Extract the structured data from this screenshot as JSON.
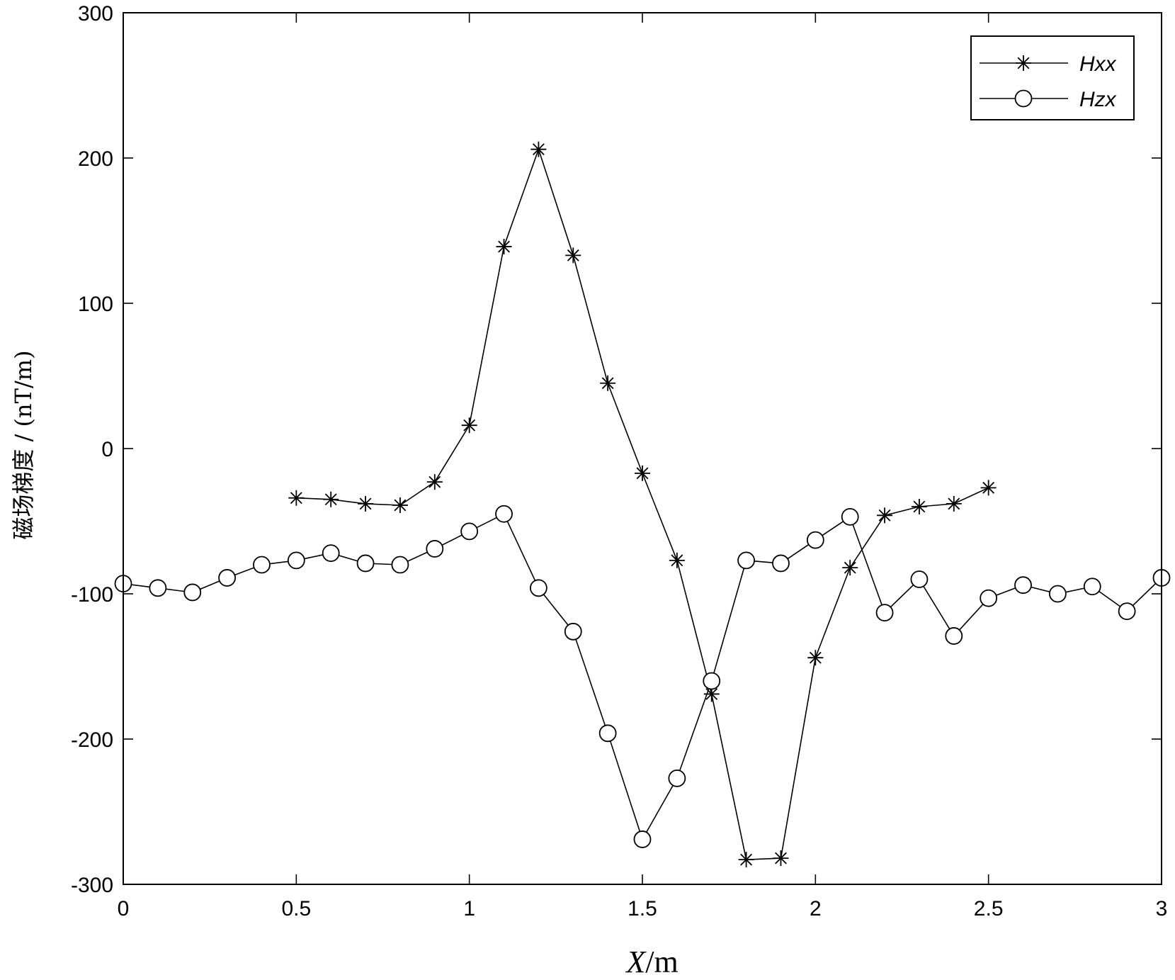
{
  "chart_data": {
    "type": "line",
    "xlabel_var": "X",
    "xlabel_unit": "/m",
    "ylabel": "磁场梯度 / (nT/m)",
    "xlim": [
      0,
      3
    ],
    "ylim": [
      -300,
      300
    ],
    "xticks": [
      0,
      0.5,
      1,
      1.5,
      2,
      2.5,
      3
    ],
    "xtick_labels": [
      "0",
      "0.5",
      "1",
      "1.5",
      "2",
      "2.5",
      "3"
    ],
    "yticks": [
      -300,
      -200,
      -100,
      0,
      100,
      200,
      300
    ],
    "ytick_labels": [
      "-300",
      "-200",
      "-100",
      "0",
      "100",
      "200",
      "300"
    ],
    "grid": false,
    "legend_position": "top-right",
    "series": [
      {
        "name": "Hxx",
        "marker": "asterisk",
        "x": [
          0.5,
          0.6,
          0.7,
          0.8,
          0.9,
          1.0,
          1.1,
          1.2,
          1.3,
          1.4,
          1.5,
          1.6,
          1.7,
          1.8,
          1.9,
          2.0,
          2.1,
          2.2,
          2.3,
          2.4,
          2.5
        ],
        "values": [
          -34,
          -35,
          -38,
          -39,
          -23,
          16,
          139,
          206,
          133,
          45,
          -17,
          -77,
          -169,
          -283,
          -282,
          -144,
          -82,
          -46,
          -40,
          -38,
          -27
        ]
      },
      {
        "name": "Hzx",
        "marker": "circle",
        "x": [
          0,
          0.1,
          0.2,
          0.3,
          0.4,
          0.5,
          0.6,
          0.7,
          0.8,
          0.9,
          1.0,
          1.1,
          1.2,
          1.3,
          1.4,
          1.5,
          1.6,
          1.7,
          1.8,
          1.9,
          2.0,
          2.1,
          2.2,
          2.3,
          2.4,
          2.5,
          2.6,
          2.7,
          2.8,
          2.9,
          3.0
        ],
        "values": [
          -93,
          -96,
          -99,
          -89,
          -80,
          -77,
          -72,
          -79,
          -80,
          -69,
          -57,
          -45,
          -96,
          -126,
          -196,
          -269,
          -227,
          -160,
          -77,
          -79,
          -63,
          -47,
          -113,
          -90,
          -129,
          -103,
          -94,
          -100,
          -95,
          -112,
          -89
        ]
      }
    ]
  }
}
